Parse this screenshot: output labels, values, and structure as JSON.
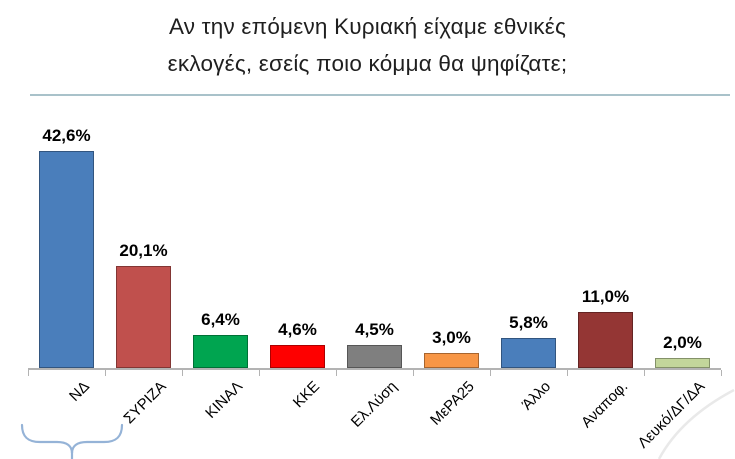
{
  "title": {
    "text": "Αν την επόμενη Κυριακή είχαμε εθνικές\nεκλογές, εσείς ποιο κόμμα θα ψηφίζατε;"
  },
  "chart_data": {
    "type": "bar",
    "title": "Αν την επόμενη Κυριακή είχαμε εθνικές εκλογές, εσείς ποιο κόμμα θα ψηφίζατε;",
    "categories": [
      "ΝΔ",
      "ΣΥΡΙΖΑ",
      "ΚΙΝΑΛ",
      "ΚΚΕ",
      "Ελ.Λύση",
      "ΜεΡΑ25",
      "Άλλο",
      "Αναποφ.",
      "Λευκό/ΔΓ/ΔΑ"
    ],
    "values": [
      42.6,
      20.1,
      6.4,
      4.6,
      4.5,
      3.0,
      5.8,
      11.0,
      2.0
    ],
    "value_labels": [
      "42,6%",
      "20,1%",
      "6,4%",
      "4,6%",
      "4,5%",
      "3,0%",
      "5,8%",
      "11,0%",
      "2,0%"
    ],
    "bar_colors": [
      "#4a7ebb",
      "#c0504d",
      "#00a550",
      "#fe0000",
      "#7f7f7f",
      "#f79646",
      "#4a7ebb",
      "#943634",
      "#c3d69b"
    ],
    "xlabel": "",
    "ylabel": "",
    "ylim": [
      0,
      45
    ],
    "grid": false,
    "legend": false,
    "value_label_format": "comma-decimal-percent",
    "annotations": [
      {
        "type": "underbrace",
        "spans": [
          "ΝΔ",
          "ΣΥΡΙΖΑ"
        ],
        "color": "#95b3d7"
      }
    ]
  },
  "colors": {
    "divider": "#a9c2ca",
    "axis": "#b3b3b3",
    "title_text": "#1f1f1f",
    "value_label_text": "#000000",
    "brace": "#95b3d7",
    "watermark": "#e9e9e9"
  }
}
